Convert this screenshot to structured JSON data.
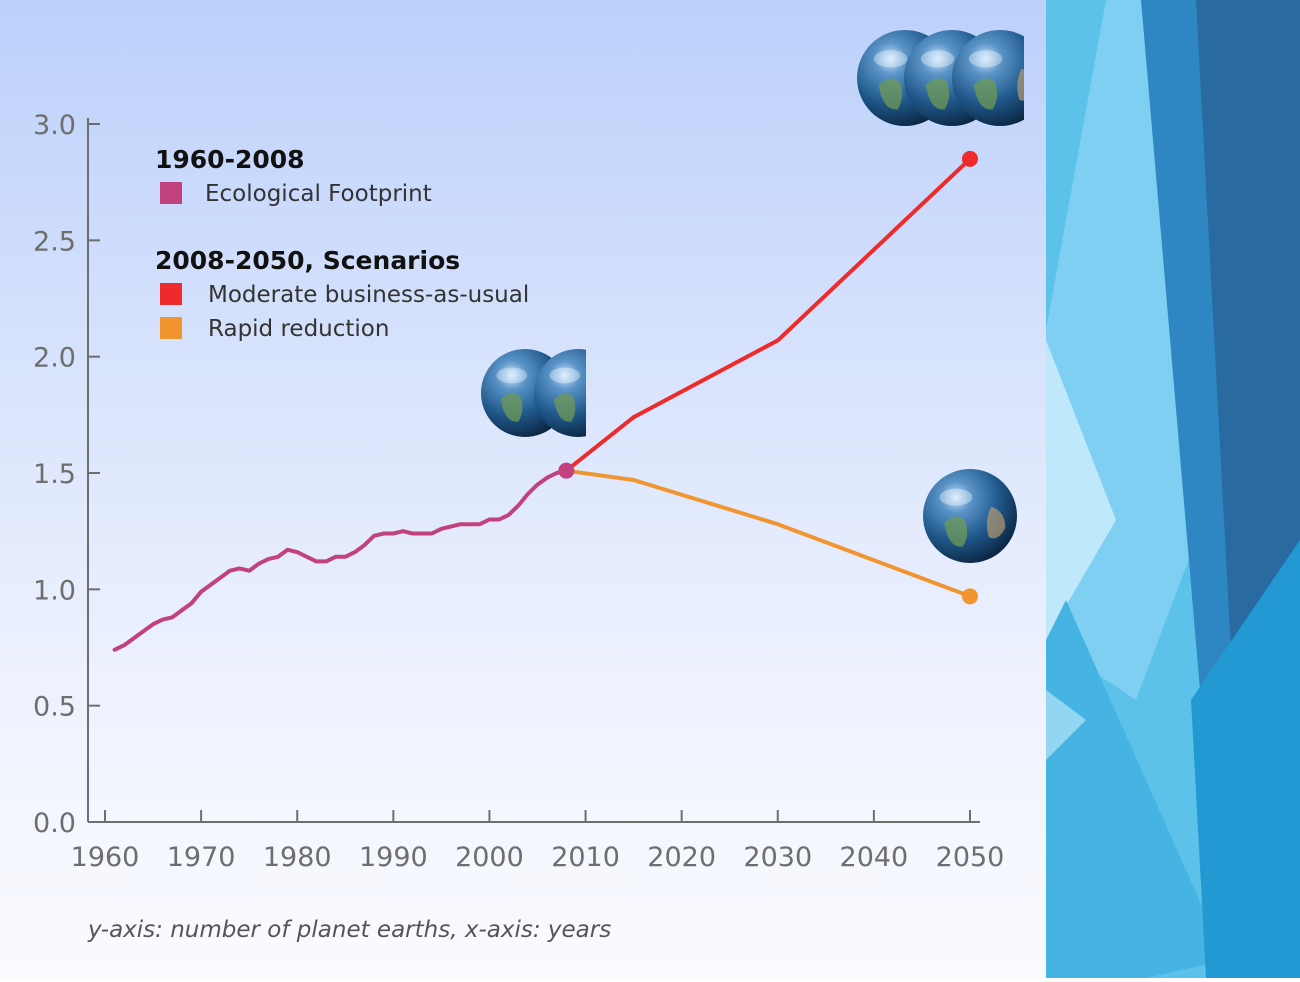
{
  "chart_data": {
    "type": "line",
    "x_ticks": [
      "1960",
      "1970",
      "1980",
      "1990",
      "2000",
      "2010",
      "2020",
      "2030",
      "2040",
      "2050"
    ],
    "y_ticks": [
      "0.0",
      "0.5",
      "1.0",
      "1.5",
      "2.0",
      "2.5",
      "3.0"
    ],
    "xlim": [
      1960,
      2050
    ],
    "ylim": [
      0,
      3.0
    ],
    "legend": {
      "placement": "top-left",
      "group1_heading": "1960-2008",
      "group2_heading": "2008-2050, Scenarios"
    },
    "series": [
      {
        "name": "Ecological Footprint",
        "color": "#c2427f",
        "x": [
          1961,
          1962,
          1963,
          1964,
          1965,
          1966,
          1967,
          1968,
          1969,
          1970,
          1971,
          1972,
          1973,
          1974,
          1975,
          1976,
          1977,
          1978,
          1979,
          1980,
          1981,
          1982,
          1983,
          1984,
          1985,
          1986,
          1987,
          1988,
          1989,
          1990,
          1991,
          1992,
          1993,
          1994,
          1995,
          1996,
          1997,
          1998,
          1999,
          2000,
          2001,
          2002,
          2003,
          2004,
          2005,
          2006,
          2007,
          2008
        ],
        "y": [
          0.74,
          0.76,
          0.79,
          0.82,
          0.85,
          0.87,
          0.88,
          0.91,
          0.94,
          0.99,
          1.02,
          1.05,
          1.08,
          1.09,
          1.08,
          1.11,
          1.13,
          1.14,
          1.17,
          1.16,
          1.14,
          1.12,
          1.12,
          1.14,
          1.14,
          1.16,
          1.19,
          1.23,
          1.24,
          1.24,
          1.25,
          1.24,
          1.24,
          1.24,
          1.26,
          1.27,
          1.28,
          1.28,
          1.28,
          1.3,
          1.3,
          1.32,
          1.36,
          1.41,
          1.45,
          1.48,
          1.5,
          1.51
        ],
        "end_marker": true
      },
      {
        "name": "Moderate business-as-usual",
        "color": "#ee2a2a",
        "x": [
          2008,
          2015,
          2030,
          2050
        ],
        "y": [
          1.51,
          1.74,
          2.07,
          2.85
        ],
        "end_marker": true
      },
      {
        "name": "Rapid reduction",
        "color": "#f0952f",
        "x": [
          2008,
          2015,
          2030,
          2050
        ],
        "y": [
          1.51,
          1.47,
          1.28,
          0.97
        ],
        "end_marker": true
      }
    ],
    "annotations": [
      {
        "type": "earth-icons",
        "count": 2,
        "anchor_x": 2008
      },
      {
        "type": "earth-icons",
        "count": 3,
        "anchor_x": 2050
      },
      {
        "type": "earth-icons",
        "count": 1,
        "anchor_x": 2050
      }
    ]
  },
  "caption": "y-axis: number of planet earths, x-axis: years",
  "colors": {
    "axis": "#6e6e6e",
    "panel_gradient_top": "#bcd0fb",
    "panel_gradient_bottom": "#fafbff",
    "deco_dark_blue": "#2b6aa3",
    "deco_light_blue": "#5fc4ec"
  }
}
